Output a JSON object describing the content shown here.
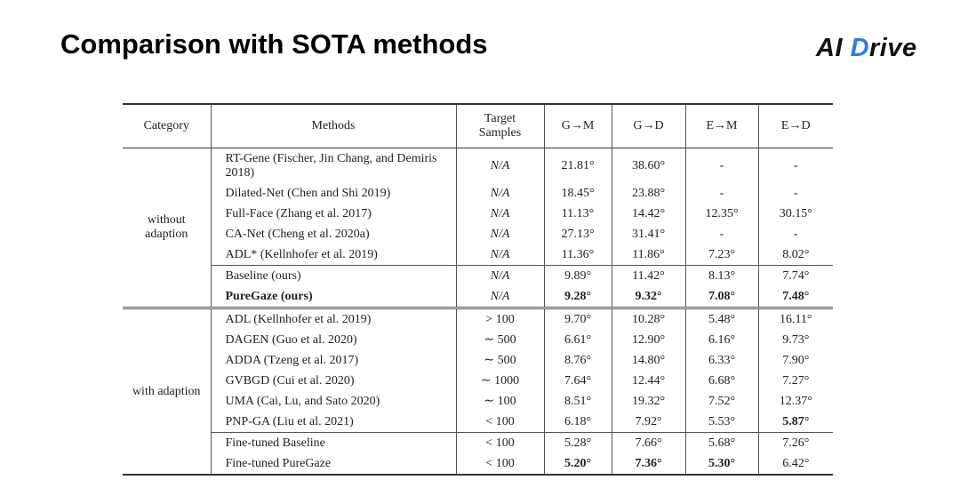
{
  "header": {
    "title": "Comparison with SOTA methods",
    "logo": {
      "left": "AI",
      "icon": "D",
      "right": "rive"
    }
  },
  "table": {
    "columns": [
      "Category",
      "Methods",
      "Target Samples",
      "G→M",
      "G→D",
      "E→M",
      "E→D"
    ],
    "groups": [
      {
        "category": "without adaption",
        "italic_samples": true,
        "blocks": [
          [
            {
              "method": "RT-Gene (Fischer, Jin Chang, and Demiris 2018)",
              "samples": "N/A",
              "values": [
                "21.81°",
                "38.60°",
                "-",
                "-"
              ]
            },
            {
              "method": "Dilated-Net (Chen and Shi 2019)",
              "samples": "N/A",
              "values": [
                "18.45°",
                "23.88°",
                "-",
                "-"
              ]
            },
            {
              "method": "Full-Face (Zhang et al. 2017)",
              "samples": "N/A",
              "values": [
                "11.13°",
                "14.42°",
                "12.35°",
                "30.15°"
              ]
            },
            {
              "method": "CA-Net (Cheng et al. 2020a)",
              "samples": "N/A",
              "values": [
                "27.13°",
                "31.41°",
                "-",
                "-"
              ]
            },
            {
              "method": "ADL* (Kellnhofer et al. 2019)",
              "samples": "N/A",
              "values": [
                "11.36°",
                "11.86°",
                "7.23°",
                "8.02°"
              ]
            }
          ],
          [
            {
              "method": "Baseline (ours)",
              "samples": "N/A",
              "values": [
                "9.89°",
                "11.42°",
                "8.13°",
                "7.74°"
              ]
            },
            {
              "method": "PureGaze (ours)",
              "samples": "N/A",
              "values": [
                "9.28°",
                "9.32°",
                "7.08°",
                "7.48°"
              ],
              "method_bold": true,
              "bold": [
                0,
                1,
                2,
                3
              ]
            }
          ]
        ]
      },
      {
        "category": "with adaption",
        "italic_samples": false,
        "blocks": [
          [
            {
              "method": "ADL (Kellnhofer et al. 2019)",
              "samples": "> 100",
              "values": [
                "9.70°",
                "10.28°",
                "5.48°",
                "16.11°"
              ]
            },
            {
              "method": "DAGEN  (Guo et al. 2020)",
              "samples": "∼ 500",
              "values": [
                "6.61°",
                "12.90°",
                "6.16°",
                "9.73°"
              ]
            },
            {
              "method": "ADDA (Tzeng et al. 2017)",
              "samples": "∼ 500",
              "values": [
                "8.76°",
                "14.80°",
                "6.33°",
                "7.90°"
              ]
            },
            {
              "method": "GVBGD (Cui et al. 2020)",
              "samples": "∼ 1000",
              "values": [
                "7.64°",
                "12.44°",
                "6.68°",
                "7.27°"
              ]
            },
            {
              "method": "UMA (Cai, Lu, and Sato 2020)",
              "samples": "∼ 100",
              "values": [
                "8.51°",
                "19.32°",
                "7.52°",
                "12.37°"
              ]
            },
            {
              "method": "PNP-GA (Liu et al. 2021)",
              "samples": "< 100",
              "values": [
                "6.18°",
                "7.92°",
                "5.53°",
                "5.87°"
              ],
              "bold": [
                3
              ]
            }
          ],
          [
            {
              "method": "Fine-tuned Baseline",
              "samples": "< 100",
              "values": [
                "5.28°",
                "7.66°",
                "5.68°",
                "7.26°"
              ]
            },
            {
              "method": "Fine-tuned PureGaze",
              "samples": "< 100",
              "values": [
                "5.20°",
                "7.36°",
                "5.30°",
                "6.42°"
              ],
              "bold": [
                0,
                1,
                2
              ]
            }
          ]
        ]
      }
    ]
  }
}
